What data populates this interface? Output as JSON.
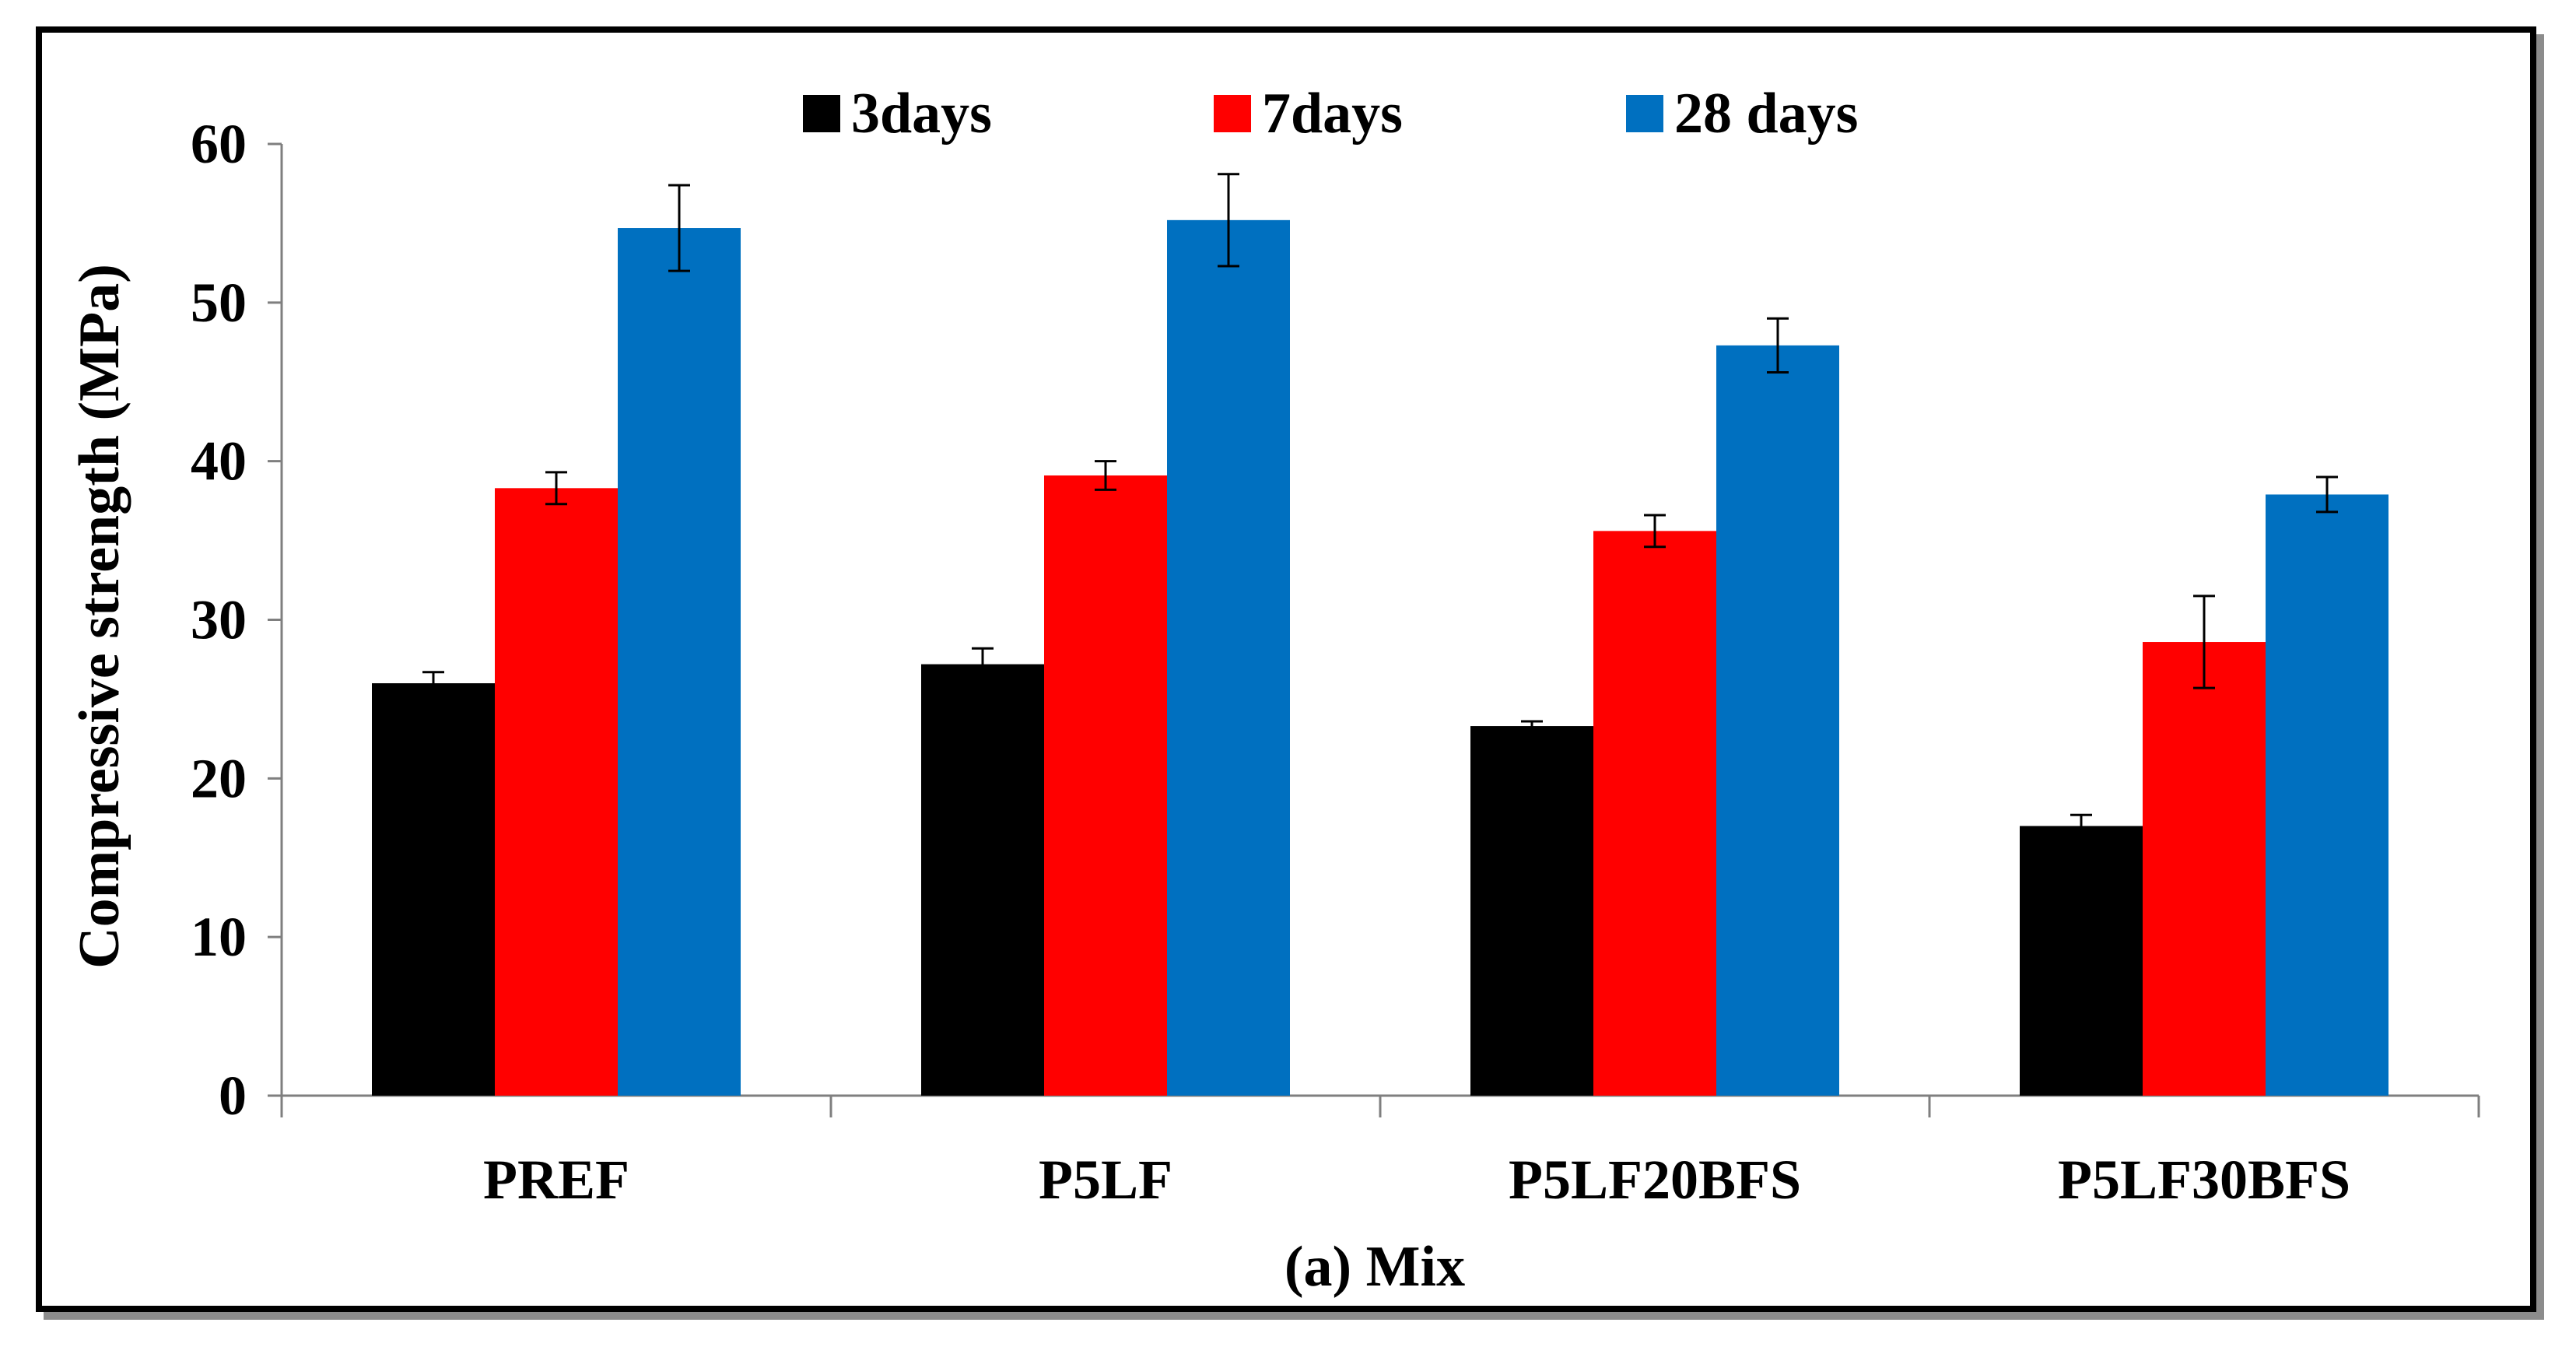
{
  "chart_data": {
    "type": "bar",
    "categories": [
      "PREF",
      "P5LF",
      "P5LF20BFS",
      "P5LF30BFS"
    ],
    "series": [
      {
        "name": "3days",
        "color": "#000000",
        "values": [
          26.0,
          27.2,
          23.3,
          17.0
        ],
        "errors": [
          0.7,
          1.0,
          0.3,
          0.7
        ]
      },
      {
        "name": "7days",
        "color": "#ff0000",
        "values": [
          38.3,
          39.1,
          35.6,
          28.6
        ],
        "errors": [
          1.0,
          0.9,
          1.0,
          2.9
        ]
      },
      {
        "name": "28 days",
        "color": "#0070c0",
        "values": [
          54.7,
          55.2,
          47.3,
          37.9
        ],
        "errors": [
          2.7,
          2.9,
          1.7,
          1.1
        ]
      }
    ],
    "xlabel": "(a) Mix",
    "ylabel": "Compressive strength (MPa)",
    "ylim": [
      0,
      60
    ],
    "yticks": [
      "0",
      "10",
      "20",
      "30",
      "40",
      "50",
      "60"
    ],
    "legend_position": "top",
    "grid": false
  }
}
